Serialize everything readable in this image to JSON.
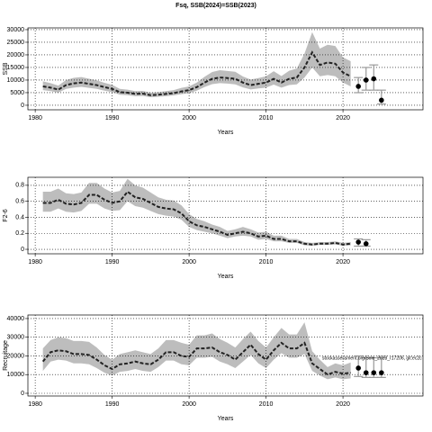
{
  "chart_data": [
    {
      "type": "line",
      "title": "Fsq, SSB(2024)=SSB(2023)",
      "ylabel": "SSB",
      "xlabel": "Years",
      "x": [
        1981,
        1982,
        1983,
        1984,
        1985,
        1986,
        1987,
        1988,
        1989,
        1990,
        1991,
        1992,
        1993,
        1994,
        1995,
        1996,
        1997,
        1998,
        1999,
        2000,
        2001,
        2002,
        2003,
        2004,
        2005,
        2006,
        2007,
        2008,
        2009,
        2010,
        2011,
        2012,
        2013,
        2014,
        2015,
        2016,
        2017,
        2018,
        2019,
        2020,
        2021
      ],
      "values": [
        7500,
        7000,
        6200,
        8000,
        8700,
        9000,
        8500,
        8000,
        7200,
        6500,
        5200,
        5000,
        4500,
        4600,
        4000,
        4200,
        4500,
        4800,
        5500,
        6000,
        7200,
        9000,
        10500,
        11000,
        10800,
        10500,
        9000,
        8000,
        8500,
        9000,
        10500,
        9000,
        10500,
        11000,
        15000,
        21000,
        16000,
        17000,
        16500,
        13000,
        11500
      ],
      "lower": [
        6000,
        5600,
        5000,
        6500,
        7000,
        7300,
        6900,
        6500,
        5800,
        5200,
        4200,
        4000,
        3600,
        3700,
        3200,
        3400,
        3600,
        3900,
        4400,
        4800,
        5800,
        7200,
        8400,
        8800,
        8600,
        8300,
        7100,
        6300,
        6700,
        7000,
        8200,
        7000,
        8000,
        8300,
        11000,
        15000,
        11500,
        12000,
        11500,
        9000,
        7500
      ],
      "upper": [
        9500,
        8800,
        7800,
        10000,
        10900,
        11200,
        10500,
        9900,
        8900,
        8100,
        6500,
        6200,
        5600,
        5700,
        5000,
        5200,
        5600,
        6000,
        6900,
        7500,
        9000,
        11300,
        13200,
        13900,
        13600,
        13300,
        11400,
        10200,
        10800,
        11500,
        13500,
        11600,
        13700,
        14600,
        20500,
        29000,
        22500,
        24000,
        23500,
        19000,
        17500
      ],
      "proj_x": [
        2022,
        2023,
        2024,
        2025
      ],
      "proj_values": [
        7500,
        10000,
        10500,
        2000
      ],
      "proj_lower": [
        5000,
        6000,
        6000,
        500
      ],
      "proj_upper": [
        11000,
        15000,
        16000,
        6000
      ],
      "xlim": [
        1979.05,
        2030.4
      ],
      "xticks": [
        1980,
        1990,
        2000,
        2010,
        2020
      ],
      "ylim": [
        -1800,
        30700
      ],
      "yticks": [
        0,
        5000,
        10000,
        15000,
        20000,
        25000,
        30000
      ],
      "grid": true
    },
    {
      "type": "line",
      "ylabel": "F2-6",
      "xlabel": "Years",
      "x": [
        1981,
        1982,
        1983,
        1984,
        1985,
        1986,
        1987,
        1988,
        1989,
        1990,
        1991,
        1992,
        1993,
        1994,
        1995,
        1996,
        1997,
        1998,
        1999,
        2000,
        2001,
        2002,
        2003,
        2004,
        2005,
        2006,
        2007,
        2008,
        2009,
        2010,
        2011,
        2012,
        2013,
        2014,
        2015,
        2016,
        2017,
        2018,
        2019,
        2020,
        2021
      ],
      "values": [
        0.58,
        0.58,
        0.62,
        0.57,
        0.56,
        0.58,
        0.68,
        0.68,
        0.62,
        0.58,
        0.6,
        0.72,
        0.65,
        0.63,
        0.58,
        0.53,
        0.51,
        0.5,
        0.45,
        0.35,
        0.3,
        0.28,
        0.25,
        0.22,
        0.18,
        0.2,
        0.22,
        0.2,
        0.16,
        0.17,
        0.13,
        0.13,
        0.1,
        0.1,
        0.07,
        0.06,
        0.07,
        0.07,
        0.08,
        0.06,
        0.07
      ],
      "lower": [
        0.47,
        0.47,
        0.51,
        0.47,
        0.46,
        0.48,
        0.57,
        0.57,
        0.51,
        0.48,
        0.49,
        0.6,
        0.54,
        0.52,
        0.48,
        0.44,
        0.42,
        0.41,
        0.37,
        0.28,
        0.24,
        0.22,
        0.2,
        0.17,
        0.14,
        0.16,
        0.17,
        0.16,
        0.12,
        0.13,
        0.1,
        0.1,
        0.08,
        0.08,
        0.05,
        0.045,
        0.055,
        0.055,
        0.06,
        0.045,
        0.05
      ],
      "upper": [
        0.72,
        0.72,
        0.76,
        0.7,
        0.69,
        0.71,
        0.83,
        0.83,
        0.76,
        0.71,
        0.73,
        0.88,
        0.8,
        0.77,
        0.71,
        0.65,
        0.62,
        0.61,
        0.55,
        0.44,
        0.38,
        0.35,
        0.31,
        0.28,
        0.23,
        0.25,
        0.28,
        0.25,
        0.21,
        0.22,
        0.17,
        0.17,
        0.13,
        0.13,
        0.09,
        0.08,
        0.09,
        0.09,
        0.1,
        0.08,
        0.09
      ],
      "proj_x": [
        2022,
        2023
      ],
      "proj_values": [
        0.09,
        0.07
      ],
      "proj_lower": [
        0.04,
        0.04
      ],
      "proj_upper": [
        0.13,
        0.12
      ],
      "xlim": [
        1979.05,
        2030.4
      ],
      "xticks": [
        1980,
        1990,
        2000,
        2010,
        2020
      ],
      "ylim": [
        -0.056,
        0.9
      ],
      "yticks": [
        0,
        0.2,
        0.4,
        0.6,
        0.8
      ],
      "grid": true
    },
    {
      "type": "line",
      "ylabel": "Recruitage",
      "xlabel": "Years",
      "annotation": "stockassessment.org/Sole_2023_r17206, git:ec2c",
      "x": [
        1981,
        1982,
        1983,
        1984,
        1985,
        1986,
        1987,
        1988,
        1989,
        1990,
        1991,
        1992,
        1993,
        1994,
        1995,
        1996,
        1997,
        1998,
        1999,
        2000,
        2001,
        2002,
        2003,
        2004,
        2005,
        2006,
        2007,
        2008,
        2009,
        2010,
        2011,
        2012,
        2013,
        2014,
        2015,
        2016,
        2017,
        2018,
        2019,
        2020,
        2021
      ],
      "values": [
        17000,
        22000,
        23000,
        22500,
        21000,
        21000,
        20500,
        18000,
        15000,
        13000,
        15500,
        16000,
        17000,
        16000,
        15500,
        18000,
        22000,
        22000,
        20000,
        19500,
        24000,
        24000,
        24500,
        22000,
        20500,
        18000,
        22000,
        26000,
        21000,
        18000,
        23000,
        27000,
        24000,
        24000,
        27000,
        16000,
        13000,
        10000,
        11500,
        10500,
        11000
      ],
      "lower": [
        12000,
        17000,
        18000,
        17500,
        16000,
        16000,
        15500,
        13500,
        11000,
        9500,
        11500,
        12000,
        13000,
        12000,
        11500,
        14000,
        17500,
        17500,
        15500,
        15000,
        19000,
        19000,
        19500,
        17000,
        15500,
        13500,
        17000,
        20500,
        16000,
        13500,
        18000,
        21500,
        19000,
        19000,
        21000,
        12000,
        9500,
        7500,
        8500,
        7500,
        8000
      ],
      "upper": [
        24000,
        28500,
        30000,
        29500,
        28000,
        28000,
        27500,
        24500,
        20500,
        18000,
        21000,
        22000,
        23000,
        22000,
        21000,
        24000,
        28500,
        28500,
        27000,
        26000,
        31000,
        31000,
        32000,
        29000,
        27000,
        24500,
        29000,
        33000,
        28000,
        24500,
        30000,
        35000,
        31500,
        31500,
        38000,
        22500,
        18000,
        14000,
        16000,
        15000,
        16500
      ],
      "proj_x": [
        2022,
        2023,
        2024,
        2025
      ],
      "proj_values": [
        13500,
        11000,
        11000,
        11000
      ],
      "proj_lower": [
        9000,
        8500,
        8500,
        8500
      ],
      "proj_upper": [
        20000,
        19000,
        19000,
        19000
      ],
      "xlim": [
        1979.05,
        2030.4
      ],
      "xticks": [
        1980,
        1990,
        2000,
        2010,
        2020
      ],
      "ylim": [
        -1450,
        41900
      ],
      "yticks": [
        0,
        10000,
        20000,
        30000,
        40000
      ],
      "grid": true
    }
  ]
}
